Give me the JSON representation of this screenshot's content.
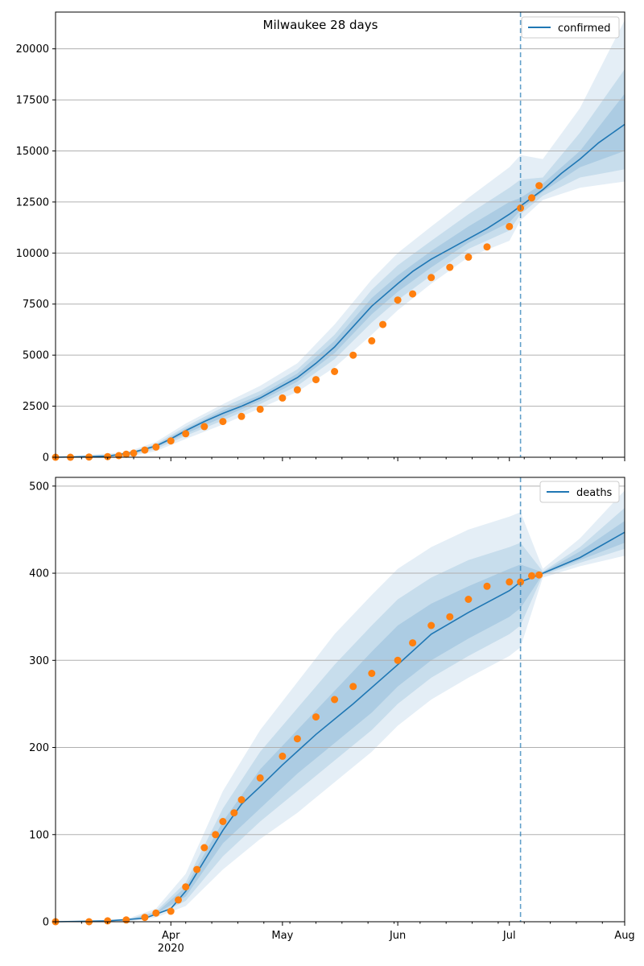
{
  "figure": {
    "title": "Milwaukee 28 days"
  },
  "colors": {
    "line": "#1f77b4",
    "observed": "#ff7f0e",
    "band": "#1f77b4",
    "grid": "#b0b0b0"
  },
  "x_axis": {
    "start": "2020-03-01",
    "end": "2020-08-01",
    "ticks": [
      {
        "date": "2020-04-01",
        "label": "Apr",
        "sublabel": "2020"
      },
      {
        "date": "2020-05-01",
        "label": "May",
        "sublabel": ""
      },
      {
        "date": "2020-06-01",
        "label": "Jun",
        "sublabel": ""
      },
      {
        "date": "2020-07-01",
        "label": "Jul",
        "sublabel": ""
      },
      {
        "date": "2020-08-01",
        "label": "Aug",
        "sublabel": ""
      }
    ],
    "forecast_start": "2020-07-04"
  },
  "chart_data": [
    {
      "type": "line",
      "title": "Milwaukee 28 days",
      "legend": "confirmed",
      "legend_position": "top-right",
      "grid": "horizontal",
      "ylim": [
        0,
        21800
      ],
      "yticks": [
        0,
        2500,
        5000,
        7500,
        10000,
        12500,
        15000,
        17500,
        20000
      ],
      "ytick_labels": [
        "0",
        "2500",
        "5000",
        "7500",
        "10000",
        "12500",
        "15000",
        "17500",
        "20000"
      ],
      "model": {
        "x": [
          "2020-03-01",
          "2020-03-15",
          "2020-03-22",
          "2020-03-28",
          "2020-04-01",
          "2020-04-05",
          "2020-04-10",
          "2020-04-15",
          "2020-04-20",
          "2020-04-25",
          "2020-05-01",
          "2020-05-05",
          "2020-05-10",
          "2020-05-15",
          "2020-05-20",
          "2020-05-25",
          "2020-06-01",
          "2020-06-05",
          "2020-06-10",
          "2020-06-15",
          "2020-06-20",
          "2020-06-25",
          "2020-07-01",
          "2020-07-04",
          "2020-07-10",
          "2020-07-15",
          "2020-07-20",
          "2020-07-25",
          "2020-08-01"
        ],
        "y": [
          0,
          50,
          250,
          550,
          900,
          1300,
          1750,
          2150,
          2500,
          2900,
          3500,
          3900,
          4600,
          5400,
          6400,
          7400,
          8500,
          9100,
          9700,
          10200,
          10700,
          11200,
          11900,
          12300,
          13100,
          13900,
          14600,
          15400,
          16300
        ],
        "band_outer": {
          "x": [
            "2020-03-01",
            "2020-03-20",
            "2020-03-28",
            "2020-04-05",
            "2020-04-15",
            "2020-04-25",
            "2020-05-05",
            "2020-05-15",
            "2020-05-25",
            "2020-06-01",
            "2020-06-10",
            "2020-06-20",
            "2020-07-01",
            "2020-07-04",
            "2020-07-10",
            "2020-07-20",
            "2020-08-01"
          ],
          "lower": [
            0,
            0,
            300,
            900,
            1600,
            2400,
            3200,
            4400,
            6000,
            7200,
            8500,
            9800,
            10600,
            11600,
            12600,
            13200,
            13500
          ],
          "upper": [
            0,
            250,
            750,
            1650,
            2600,
            3500,
            4600,
            6500,
            8700,
            10000,
            11300,
            12700,
            14200,
            14800,
            14600,
            17100,
            21400
          ]
        },
        "band_mid": {
          "x": [
            "2020-03-01",
            "2020-03-20",
            "2020-03-28",
            "2020-04-05",
            "2020-04-15",
            "2020-04-25",
            "2020-05-05",
            "2020-05-15",
            "2020-05-25",
            "2020-06-01",
            "2020-06-10",
            "2020-06-20",
            "2020-07-01",
            "2020-07-04",
            "2020-07-10",
            "2020-07-20",
            "2020-08-01"
          ],
          "lower": [
            0,
            50,
            400,
            1050,
            1800,
            2600,
            3500,
            4800,
            6600,
            7700,
            8900,
            10200,
            11100,
            11900,
            12800,
            13700,
            14100
          ],
          "upper": [
            0,
            180,
            650,
            1500,
            2450,
            3250,
            4300,
            6000,
            8200,
            9400,
            10600,
            11900,
            13200,
            13600,
            13700,
            15900,
            19000
          ]
        },
        "band_inner": {
          "x": [
            "2020-03-01",
            "2020-03-20",
            "2020-03-28",
            "2020-04-05",
            "2020-04-15",
            "2020-04-25",
            "2020-05-05",
            "2020-05-15",
            "2020-05-25",
            "2020-06-01",
            "2020-06-10",
            "2020-06-20",
            "2020-07-01",
            "2020-07-04",
            "2020-07-10",
            "2020-07-20",
            "2020-08-01"
          ],
          "lower": [
            0,
            80,
            480,
            1150,
            1950,
            2750,
            3700,
            5100,
            7000,
            8100,
            9300,
            10500,
            11500,
            12100,
            13000,
            14200,
            15000
          ],
          "upper": [
            0,
            140,
            600,
            1400,
            2300,
            3050,
            4100,
            5700,
            7800,
            8900,
            10100,
            11300,
            12500,
            12700,
            13400,
            15000,
            17800
          ]
        }
      },
      "observed": {
        "x": [
          "2020-03-01",
          "2020-03-05",
          "2020-03-10",
          "2020-03-15",
          "2020-03-18",
          "2020-03-20",
          "2020-03-22",
          "2020-03-25",
          "2020-03-28",
          "2020-04-01",
          "2020-04-05",
          "2020-04-10",
          "2020-04-15",
          "2020-04-20",
          "2020-04-25",
          "2020-05-01",
          "2020-05-05",
          "2020-05-10",
          "2020-05-15",
          "2020-05-20",
          "2020-05-25",
          "2020-05-28",
          "2020-06-01",
          "2020-06-05",
          "2020-06-10",
          "2020-06-15",
          "2020-06-20",
          "2020-06-25",
          "2020-07-01",
          "2020-07-04",
          "2020-07-07",
          "2020-07-09"
        ],
        "y": [
          0,
          0,
          10,
          30,
          80,
          150,
          200,
          350,
          500,
          800,
          1150,
          1500,
          1750,
          2000,
          2350,
          2900,
          3300,
          3800,
          4200,
          5000,
          5700,
          6500,
          7700,
          8000,
          8800,
          9300,
          9800,
          10300,
          11300,
          12200,
          12700,
          13300
        ]
      }
    },
    {
      "type": "line",
      "title": "",
      "legend": "deaths",
      "legend_position": "top-right",
      "grid": "horizontal",
      "ylim": [
        0,
        510
      ],
      "yticks": [
        0,
        100,
        200,
        300,
        400,
        500
      ],
      "ytick_labels": [
        "0",
        "100",
        "200",
        "300",
        "400",
        "500"
      ],
      "model": {
        "x": [
          "2020-03-01",
          "2020-03-15",
          "2020-03-25",
          "2020-04-01",
          "2020-04-05",
          "2020-04-10",
          "2020-04-15",
          "2020-04-20",
          "2020-04-25",
          "2020-05-01",
          "2020-05-10",
          "2020-05-20",
          "2020-06-01",
          "2020-06-10",
          "2020-06-20",
          "2020-07-01",
          "2020-07-04",
          "2020-07-10",
          "2020-07-20",
          "2020-08-01"
        ],
        "y": [
          0,
          1,
          4,
          15,
          35,
          70,
          105,
          135,
          155,
          180,
          215,
          250,
          295,
          330,
          355,
          380,
          390,
          400,
          418,
          447
        ],
        "band_outer": {
          "x": [
            "2020-03-01",
            "2020-03-20",
            "2020-03-28",
            "2020-04-05",
            "2020-04-15",
            "2020-04-25",
            "2020-05-05",
            "2020-05-15",
            "2020-05-25",
            "2020-06-01",
            "2020-06-10",
            "2020-06-20",
            "2020-07-01",
            "2020-07-04",
            "2020-07-10",
            "2020-07-20",
            "2020-08-01"
          ],
          "lower": [
            0,
            0,
            5,
            18,
            60,
            95,
            125,
            160,
            195,
            225,
            255,
            280,
            305,
            315,
            395,
            408,
            420
          ],
          "upper": [
            0,
            3,
            15,
            55,
            150,
            220,
            275,
            330,
            375,
            405,
            430,
            450,
            465,
            470,
            405,
            440,
            495
          ]
        },
        "band_mid": {
          "x": [
            "2020-03-01",
            "2020-03-20",
            "2020-03-28",
            "2020-04-05",
            "2020-04-15",
            "2020-04-25",
            "2020-05-05",
            "2020-05-15",
            "2020-05-25",
            "2020-06-01",
            "2020-06-10",
            "2020-06-20",
            "2020-07-01",
            "2020-07-04",
            "2020-07-10",
            "2020-07-20",
            "2020-08-01"
          ],
          "lower": [
            0,
            1,
            7,
            24,
            75,
            115,
            150,
            185,
            220,
            250,
            280,
            305,
            330,
            340,
            398,
            412,
            428
          ],
          "upper": [
            0,
            2,
            12,
            45,
            130,
            195,
            245,
            295,
            340,
            370,
            395,
            415,
            430,
            435,
            402,
            430,
            475
          ]
        },
        "band_inner": {
          "x": [
            "2020-03-01",
            "2020-03-20",
            "2020-03-28",
            "2020-04-05",
            "2020-04-15",
            "2020-04-25",
            "2020-05-05",
            "2020-05-15",
            "2020-05-25",
            "2020-06-01",
            "2020-06-10",
            "2020-06-20",
            "2020-07-01",
            "2020-07-04",
            "2020-07-10",
            "2020-07-20",
            "2020-08-01"
          ],
          "lower": [
            0,
            1,
            9,
            29,
            90,
            130,
            170,
            205,
            240,
            270,
            300,
            325,
            350,
            360,
            399,
            415,
            435
          ],
          "upper": [
            0,
            2,
            10,
            40,
            115,
            175,
            220,
            265,
            310,
            340,
            365,
            385,
            405,
            410,
            401,
            425,
            460
          ]
        }
      },
      "observed": {
        "x": [
          "2020-03-01",
          "2020-03-10",
          "2020-03-15",
          "2020-03-20",
          "2020-03-25",
          "2020-03-28",
          "2020-04-01",
          "2020-04-03",
          "2020-04-05",
          "2020-04-08",
          "2020-04-10",
          "2020-04-13",
          "2020-04-15",
          "2020-04-18",
          "2020-04-20",
          "2020-04-25",
          "2020-05-01",
          "2020-05-05",
          "2020-05-10",
          "2020-05-15",
          "2020-05-20",
          "2020-05-25",
          "2020-06-01",
          "2020-06-05",
          "2020-06-10",
          "2020-06-15",
          "2020-06-20",
          "2020-06-25",
          "2020-07-01",
          "2020-07-04",
          "2020-07-07",
          "2020-07-09"
        ],
        "y": [
          0,
          0,
          1,
          2,
          5,
          10,
          12,
          25,
          40,
          60,
          85,
          100,
          115,
          125,
          140,
          165,
          190,
          210,
          235,
          255,
          270,
          285,
          300,
          320,
          340,
          350,
          370,
          385,
          390,
          390,
          397,
          398
        ]
      }
    }
  ]
}
